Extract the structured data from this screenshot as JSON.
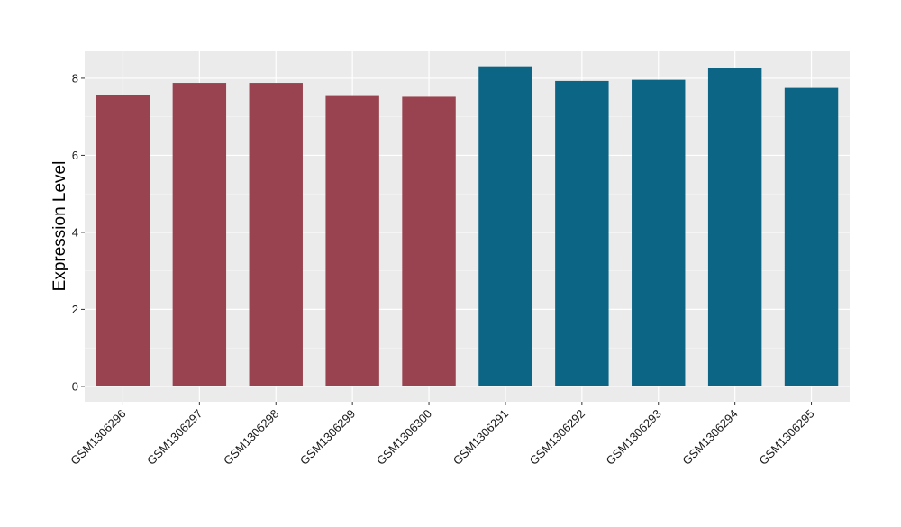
{
  "chart_data": {
    "type": "bar",
    "title": "",
    "xlabel": "",
    "ylabel": "Expression Level",
    "categories": [
      "GSM1306296",
      "GSM1306297",
      "GSM1306298",
      "GSM1306299",
      "GSM1306300",
      "GSM1306291",
      "GSM1306292",
      "GSM1306293",
      "GSM1306294",
      "GSM1306295"
    ],
    "values": [
      7.56,
      7.88,
      7.88,
      7.54,
      7.52,
      8.31,
      7.93,
      7.96,
      8.27,
      7.75
    ],
    "bar_colors": [
      "#9a4350",
      "#9a4350",
      "#9a4350",
      "#9a4350",
      "#9a4350",
      "#0c6585",
      "#0c6585",
      "#0c6585",
      "#0c6585",
      "#0c6585"
    ],
    "ylim": [
      -0.4,
      8.7
    ],
    "yticks": [
      0,
      2,
      4,
      6,
      8
    ],
    "grid": true,
    "panel_background": "#ebebeb",
    "legend": "none"
  }
}
